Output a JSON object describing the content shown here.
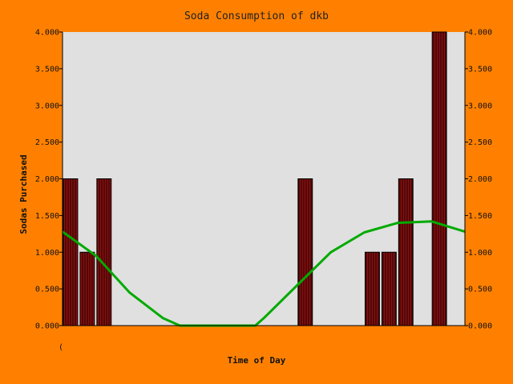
{
  "chart_data": {
    "type": "bar",
    "title": "Soda Consumption of dkb",
    "xlabel": "Time of Day",
    "ylabel": "Sodas Purchased",
    "x_tick_labels": [
      "("
    ],
    "ylim": [
      0,
      4
    ],
    "y_tick_labels": [
      "0.000",
      "0.500",
      "1.000",
      "1.500",
      "2.000",
      "2.500",
      "3.000",
      "3.500",
      "4.000"
    ],
    "bins": 24,
    "values": [
      2,
      1,
      2,
      0,
      0,
      0,
      0,
      0,
      0,
      0,
      0,
      0,
      0,
      0,
      2,
      0,
      0,
      0,
      1,
      1,
      2,
      0,
      4,
      0
    ],
    "trend_line": {
      "x": [
        0,
        2,
        4,
        6,
        7,
        8,
        10,
        11.5,
        12,
        14,
        16,
        18,
        20,
        22,
        24
      ],
      "y": [
        1.28,
        0.95,
        0.45,
        0.1,
        0,
        0,
        0,
        0,
        0.1,
        0.55,
        1.0,
        1.27,
        1.4,
        1.42,
        1.28
      ]
    },
    "grid": false,
    "right_axis_mirror": true,
    "colors": {
      "background": "#ff8000",
      "plot_area": "#e0e0e0",
      "bar_fill": "#8b1010",
      "bar_hatch": "#1a0000",
      "trend": "#00aa00"
    }
  }
}
